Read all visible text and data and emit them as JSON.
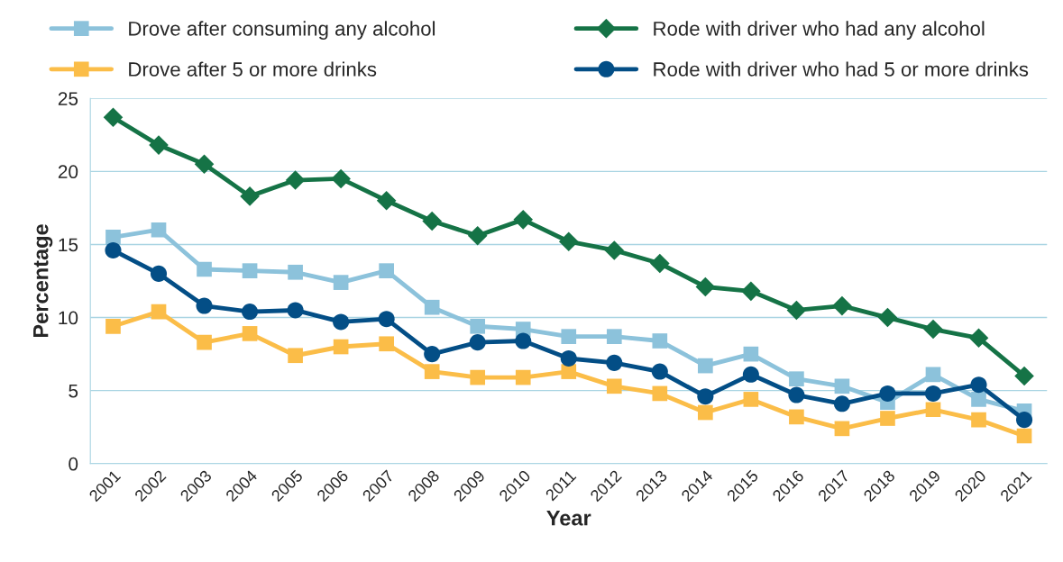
{
  "chart_data": {
    "type": "line",
    "xlabel": "Year",
    "ylabel": "Percentage",
    "categories": [
      "2001",
      "2002",
      "2003",
      "2004",
      "2005",
      "2006",
      "2007",
      "2008",
      "2009",
      "2010",
      "2011",
      "2012",
      "2013",
      "2014",
      "2015",
      "2016",
      "2017",
      "2018",
      "2019",
      "2020",
      "2021"
    ],
    "series": [
      {
        "name": "Drove after consuming any alcohol",
        "color": "#8cc2db",
        "marker": "square",
        "values": [
          15.5,
          16.0,
          13.3,
          13.2,
          13.1,
          12.4,
          13.2,
          10.7,
          9.4,
          9.2,
          8.7,
          8.7,
          8.4,
          6.7,
          7.5,
          5.8,
          5.3,
          4.2,
          6.1,
          4.4,
          3.6
        ]
      },
      {
        "name": "Drove after 5 or more drinks",
        "color": "#fbbd48",
        "marker": "square",
        "values": [
          9.4,
          10.4,
          8.3,
          8.9,
          7.4,
          8.0,
          8.2,
          6.3,
          5.9,
          5.9,
          6.3,
          5.3,
          4.8,
          3.5,
          4.4,
          3.2,
          2.4,
          3.1,
          3.7,
          3.0,
          1.9
        ]
      },
      {
        "name": "Rode with driver who had any alcohol",
        "color": "#157346",
        "marker": "diamond",
        "values": [
          23.7,
          21.8,
          20.5,
          18.3,
          19.4,
          19.5,
          18.0,
          16.6,
          15.6,
          16.7,
          15.2,
          14.6,
          13.7,
          12.1,
          11.8,
          10.5,
          10.8,
          10.0,
          9.2,
          8.6,
          6.0
        ]
      },
      {
        "name": "Rode with driver who had 5 or more drinks",
        "color": "#034e86",
        "marker": "circle",
        "values": [
          14.6,
          13.0,
          10.8,
          10.4,
          10.5,
          9.7,
          9.9,
          7.5,
          8.3,
          8.4,
          7.2,
          6.9,
          6.3,
          4.6,
          6.1,
          4.7,
          4.1,
          4.8,
          4.8,
          5.4,
          3.0
        ]
      }
    ],
    "ylim": [
      0,
      25
    ],
    "yticks": [
      0,
      5,
      10,
      15,
      20,
      25
    ],
    "grid": "y",
    "legend": "top",
    "line_style": "solid"
  }
}
